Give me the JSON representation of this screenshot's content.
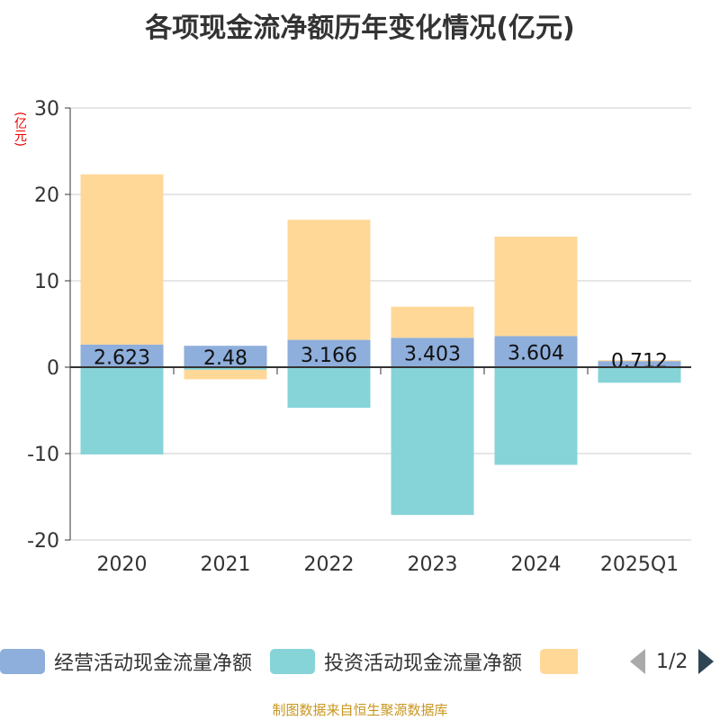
{
  "chart_data": {
    "type": "bar",
    "stacked": true,
    "title": "各项现金流净额历年变化情况(亿元)",
    "ylabel": "(亿元)",
    "xlabel": "",
    "ylim": [
      -20,
      30
    ],
    "yticks": [
      -20,
      -10,
      0,
      10,
      20,
      30
    ],
    "grid": true,
    "categories": [
      "2020",
      "2021",
      "2022",
      "2023",
      "2024",
      "2025Q1"
    ],
    "series": [
      {
        "name": "经营活动现金流量净额",
        "color": "#8eaedb",
        "values": [
          2.623,
          2.48,
          3.166,
          3.403,
          3.604,
          0.712
        ],
        "labels": [
          "2.623",
          "2.48",
          "3.166",
          "3.403",
          "3.604",
          "0.712"
        ]
      },
      {
        "name": "投资活动现金流量净额",
        "color": "#86d4d8",
        "values": [
          -10.1,
          -0.3,
          -4.7,
          -17.1,
          -11.3,
          -1.8
        ]
      },
      {
        "name": "",
        "color": "#ffd898",
        "values": [
          19.7,
          -1.1,
          13.9,
          3.6,
          11.5,
          0.1
        ]
      }
    ],
    "legend_position": "bottom"
  },
  "pager": "1/2",
  "source": "制图数据来自恒生聚源数据库"
}
